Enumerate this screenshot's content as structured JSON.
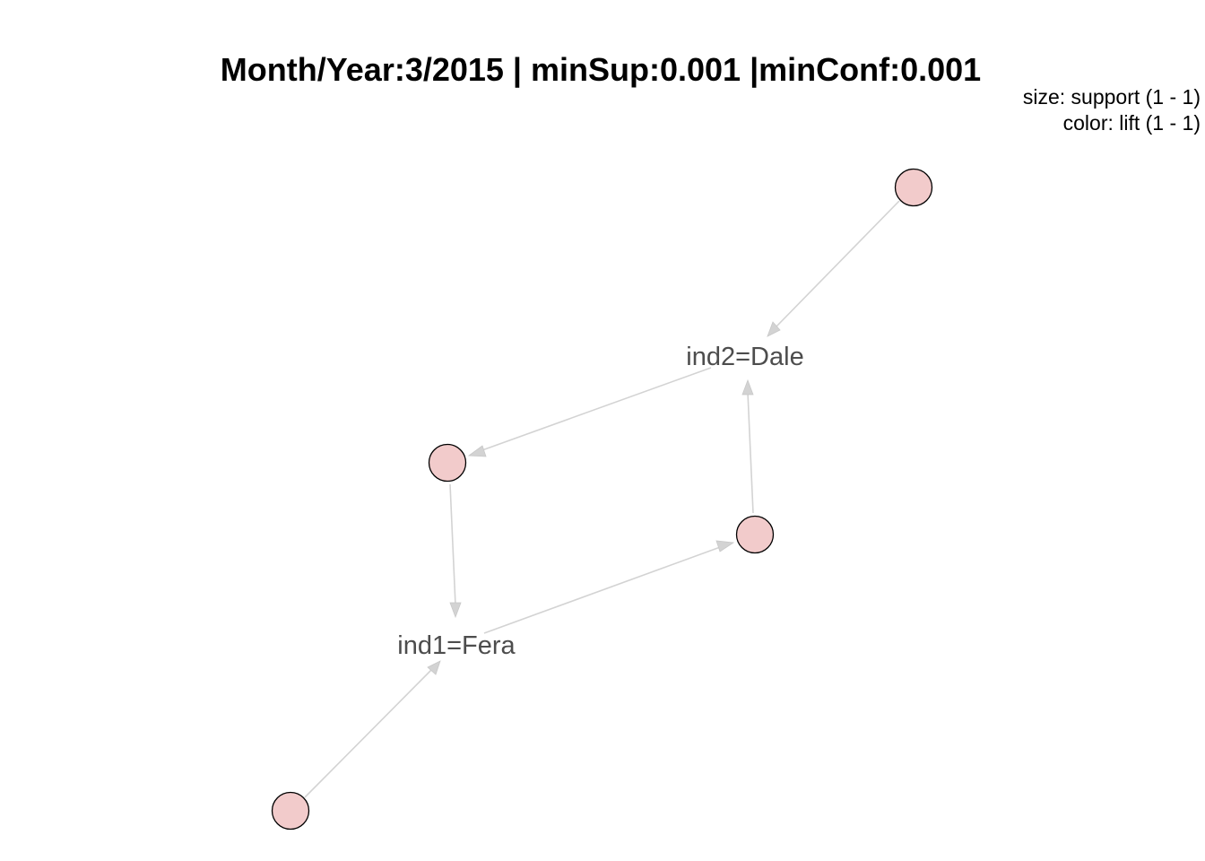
{
  "title": "Month/Year:3/2015 | minSup:0.001 |minConf:0.001",
  "legend": {
    "size": "size: support (1 - 1)",
    "color": "color: lift (1 - 1)"
  },
  "colors": {
    "rule_fill": "#f2cbcb",
    "rule_stroke": "#000000",
    "edge": "#d3d3d3",
    "label_text": "#4d4d4d"
  },
  "items": [
    {
      "id": "dale",
      "label": "ind2=Dale"
    },
    {
      "id": "fera",
      "label": "ind1=Fera"
    }
  ],
  "rules": [
    {
      "id": "rule-1",
      "lhs": "",
      "rhs": "ind2=Dale",
      "support": 1,
      "lift": 1
    },
    {
      "id": "rule-2",
      "lhs": "ind2=Dale",
      "rhs": "ind1=Fera",
      "support": 1,
      "lift": 1
    },
    {
      "id": "rule-3",
      "lhs": "ind1=Fera",
      "rhs": "ind2=Dale",
      "support": 1,
      "lift": 1
    },
    {
      "id": "rule-4",
      "lhs": "",
      "rhs": "ind1=Fera",
      "support": 1,
      "lift": 1
    }
  ]
}
